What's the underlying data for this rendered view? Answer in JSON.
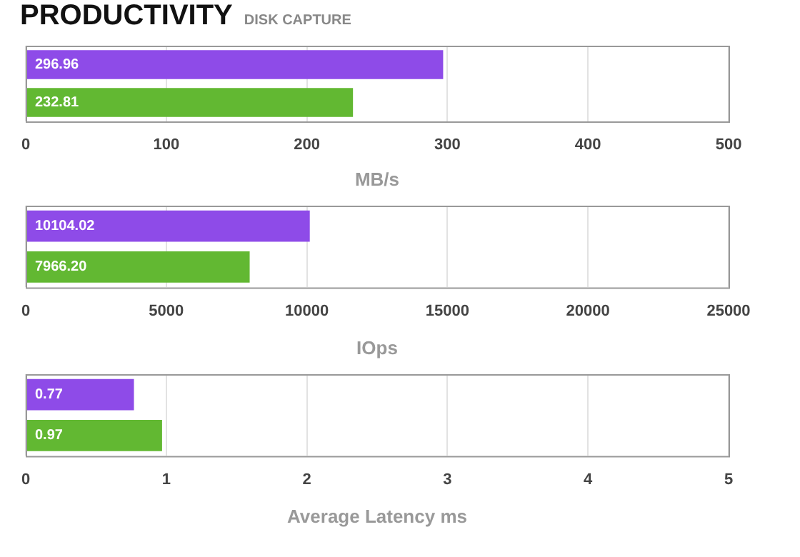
{
  "chart_data": [
    {
      "type": "bar",
      "orientation": "horizontal",
      "title": "PRODUCTIVITY",
      "subtitle": "DISK CAPTURE",
      "categories": [
        null,
        null
      ],
      "values": [
        296.96,
        232.81
      ],
      "colors": [
        "#8e4be8",
        "#62b832"
      ],
      "xlim": [
        0,
        500
      ],
      "xticks": [
        0,
        100,
        200,
        300,
        400,
        500
      ],
      "xlabel": "MB/s",
      "grid": "x",
      "data_labels": true
    },
    {
      "type": "bar",
      "orientation": "horizontal",
      "categories": [
        null,
        null
      ],
      "values": [
        10104.02,
        7966.2
      ],
      "value_labels": [
        "10104.02",
        "7966.20"
      ],
      "colors": [
        "#8e4be8",
        "#62b832"
      ],
      "xlim": [
        0,
        25000
      ],
      "xticks": [
        0,
        5000,
        10000,
        15000,
        20000,
        25000
      ],
      "xlabel": "IOps",
      "grid": "x"
    },
    {
      "type": "bar",
      "orientation": "horizontal",
      "categories": [
        null,
        null
      ],
      "values": [
        0.77,
        0.97
      ],
      "colors": [
        "#8e4be8",
        "#62b832"
      ],
      "xlim": [
        0,
        5
      ],
      "xticks": [
        0,
        1,
        2,
        3,
        4,
        5
      ],
      "xlabel": "Average Latency ms",
      "grid": "x",
      "data_labels": true
    }
  ]
}
